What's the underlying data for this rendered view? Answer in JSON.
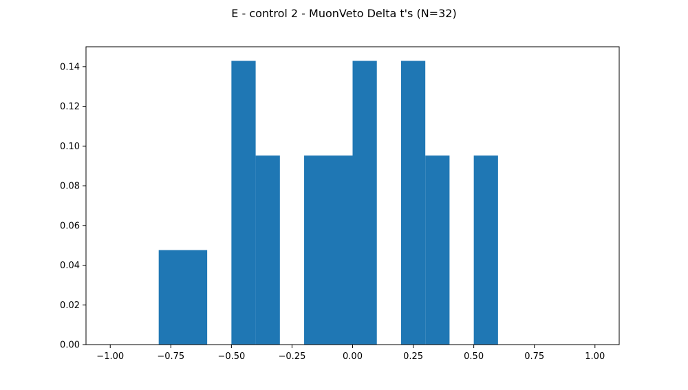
{
  "chart_data": {
    "type": "bar",
    "title": "E - control 2 - MuonVeto Delta t's (N=32)",
    "xlabel": "",
    "ylabel": "",
    "xlim": [
      -1.1,
      1.1
    ],
    "ylim": [
      0,
      0.15
    ],
    "bar_color": "#1f77b4",
    "grid": false,
    "bins": [
      {
        "x0": -0.8,
        "x1": -0.6,
        "value": 0.0476
      },
      {
        "x0": -0.5,
        "x1": -0.4,
        "value": 0.1429
      },
      {
        "x0": -0.4,
        "x1": -0.3,
        "value": 0.0952
      },
      {
        "x0": -0.2,
        "x1": 0.0,
        "value": 0.0952
      },
      {
        "x0": 0.0,
        "x1": 0.1,
        "value": 0.1429
      },
      {
        "x0": 0.2,
        "x1": 0.3,
        "value": 0.1429
      },
      {
        "x0": 0.3,
        "x1": 0.4,
        "value": 0.0952
      },
      {
        "x0": 0.5,
        "x1": 0.6,
        "value": 0.0952
      }
    ],
    "x_ticks": [
      {
        "value": -1.0,
        "label": "−1.00"
      },
      {
        "value": -0.75,
        "label": "−0.75"
      },
      {
        "value": -0.5,
        "label": "−0.50"
      },
      {
        "value": -0.25,
        "label": "−0.25"
      },
      {
        "value": 0.0,
        "label": "0.00"
      },
      {
        "value": 0.25,
        "label": "0.25"
      },
      {
        "value": 0.5,
        "label": "0.50"
      },
      {
        "value": 0.75,
        "label": "0.75"
      },
      {
        "value": 1.0,
        "label": "1.00"
      }
    ],
    "y_ticks": [
      {
        "value": 0.0,
        "label": "0.00"
      },
      {
        "value": 0.02,
        "label": "0.02"
      },
      {
        "value": 0.04,
        "label": "0.04"
      },
      {
        "value": 0.06,
        "label": "0.06"
      },
      {
        "value": 0.08,
        "label": "0.08"
      },
      {
        "value": 0.1,
        "label": "0.10"
      },
      {
        "value": 0.12,
        "label": "0.12"
      },
      {
        "value": 0.14,
        "label": "0.14"
      }
    ]
  }
}
